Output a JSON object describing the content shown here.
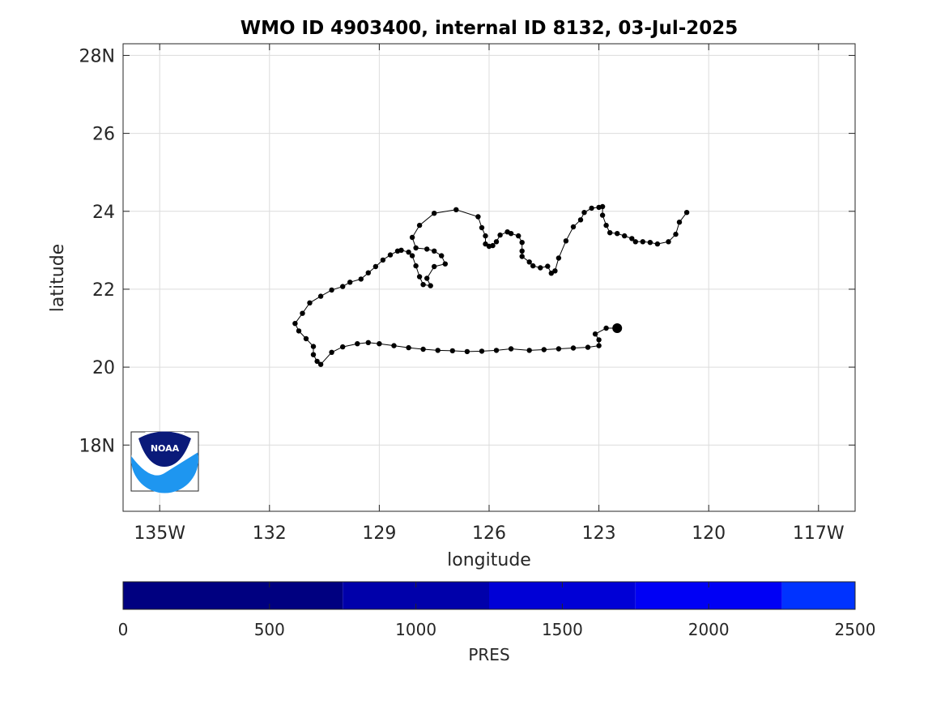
{
  "chart_data": {
    "type": "line",
    "title": "WMO ID 4903400, internal ID 8132, 03-Jul-2025",
    "xlabel": "longitude",
    "ylabel": "latitude",
    "xlim": [
      -136,
      -116
    ],
    "ylim": [
      16.3,
      28.3
    ],
    "grid": true,
    "x_ticks": [
      {
        "value": -135,
        "label": "135W"
      },
      {
        "value": -132,
        "label": "132"
      },
      {
        "value": -129,
        "label": "129"
      },
      {
        "value": -126,
        "label": "126"
      },
      {
        "value": -123,
        "label": "123"
      },
      {
        "value": -120,
        "label": "120"
      },
      {
        "value": -117,
        "label": "117W"
      }
    ],
    "y_ticks": [
      {
        "value": 18,
        "label": "18N"
      },
      {
        "value": 20,
        "label": "20"
      },
      {
        "value": 22,
        "label": "22"
      },
      {
        "value": 24,
        "label": "24"
      },
      {
        "value": 26,
        "label": "26"
      },
      {
        "value": 28,
        "label": "28N"
      }
    ],
    "series": [
      {
        "color": "#000000",
        "marker": "dot",
        "last_point_emphasized": true,
        "points": [
          [
            -120.6,
            23.97
          ],
          [
            -120.8,
            23.72
          ],
          [
            -120.9,
            23.41
          ],
          [
            -121.1,
            23.22
          ],
          [
            -121.4,
            23.16
          ],
          [
            -121.6,
            23.2
          ],
          [
            -121.8,
            23.22
          ],
          [
            -122.0,
            23.22
          ],
          [
            -122.1,
            23.3
          ],
          [
            -122.3,
            23.37
          ],
          [
            -122.5,
            23.43
          ],
          [
            -122.7,
            23.45
          ],
          [
            -122.8,
            23.64
          ],
          [
            -122.9,
            23.9
          ],
          [
            -122.9,
            24.12
          ],
          [
            -123.0,
            24.1
          ],
          [
            -123.2,
            24.08
          ],
          [
            -123.4,
            23.97
          ],
          [
            -123.5,
            23.78
          ],
          [
            -123.7,
            23.6
          ],
          [
            -123.9,
            23.24
          ],
          [
            -124.1,
            22.8
          ],
          [
            -124.2,
            22.47
          ],
          [
            -124.3,
            22.41
          ],
          [
            -124.4,
            22.59
          ],
          [
            -124.6,
            22.55
          ],
          [
            -124.8,
            22.6
          ],
          [
            -124.9,
            22.7
          ],
          [
            -125.1,
            22.84
          ],
          [
            -125.1,
            22.98
          ],
          [
            -125.1,
            23.2
          ],
          [
            -125.2,
            23.37
          ],
          [
            -125.4,
            23.43
          ],
          [
            -125.5,
            23.47
          ],
          [
            -125.7,
            23.39
          ],
          [
            -125.8,
            23.22
          ],
          [
            -125.9,
            23.12
          ],
          [
            -126.0,
            23.1
          ],
          [
            -126.1,
            23.16
          ],
          [
            -126.1,
            23.37
          ],
          [
            -126.2,
            23.58
          ],
          [
            -126.3,
            23.86
          ],
          [
            -126.9,
            24.04
          ],
          [
            -127.5,
            23.95
          ],
          [
            -127.9,
            23.64
          ],
          [
            -128.1,
            23.33
          ],
          [
            -128.0,
            23.06
          ],
          [
            -127.7,
            23.03
          ],
          [
            -127.5,
            22.98
          ],
          [
            -127.3,
            22.86
          ],
          [
            -127.2,
            22.65
          ],
          [
            -127.5,
            22.58
          ],
          [
            -127.7,
            22.28
          ],
          [
            -127.6,
            22.09
          ],
          [
            -127.8,
            22.12
          ],
          [
            -127.9,
            22.32
          ],
          [
            -128.0,
            22.6
          ],
          [
            -128.1,
            22.86
          ],
          [
            -128.2,
            22.95
          ],
          [
            -128.4,
            23.0
          ],
          [
            -128.5,
            22.98
          ],
          [
            -128.7,
            22.88
          ],
          [
            -128.9,
            22.75
          ],
          [
            -129.1,
            22.58
          ],
          [
            -129.3,
            22.42
          ],
          [
            -129.5,
            22.26
          ],
          [
            -129.8,
            22.18
          ],
          [
            -130.0,
            22.07
          ],
          [
            -130.3,
            21.98
          ],
          [
            -130.6,
            21.82
          ],
          [
            -130.9,
            21.65
          ],
          [
            -131.1,
            21.38
          ],
          [
            -131.3,
            21.12
          ],
          [
            -131.2,
            20.93
          ],
          [
            -131.0,
            20.73
          ],
          [
            -130.8,
            20.53
          ],
          [
            -130.8,
            20.32
          ],
          [
            -130.7,
            20.15
          ],
          [
            -130.6,
            20.07
          ],
          [
            -130.3,
            20.38
          ],
          [
            -130.0,
            20.52
          ],
          [
            -129.6,
            20.6
          ],
          [
            -129.3,
            20.63
          ],
          [
            -129.0,
            20.6
          ],
          [
            -128.6,
            20.55
          ],
          [
            -128.2,
            20.5
          ],
          [
            -127.8,
            20.46
          ],
          [
            -127.4,
            20.43
          ],
          [
            -127.0,
            20.42
          ],
          [
            -126.6,
            20.4
          ],
          [
            -126.2,
            20.41
          ],
          [
            -125.8,
            20.43
          ],
          [
            -125.4,
            20.47
          ],
          [
            -124.9,
            20.43
          ],
          [
            -124.5,
            20.45
          ],
          [
            -124.1,
            20.47
          ],
          [
            -123.7,
            20.49
          ],
          [
            -123.3,
            20.51
          ],
          [
            -123.0,
            20.55
          ],
          [
            -123.0,
            20.7
          ],
          [
            -123.1,
            20.85
          ],
          [
            -122.8,
            21.0
          ],
          [
            -122.5,
            21.0
          ]
        ]
      }
    ],
    "colorbar": {
      "label": "PRES",
      "ticks": [
        "0",
        "500",
        "1000",
        "1500",
        "2000",
        "2500"
      ],
      "range": [
        0,
        2500
      ],
      "segments": [
        {
          "from": 0,
          "to": 750,
          "color": "#000080"
        },
        {
          "from": 750,
          "to": 1250,
          "color": "#0000aa"
        },
        {
          "from": 1250,
          "to": 1750,
          "color": "#0000d6"
        },
        {
          "from": 1750,
          "to": 2250,
          "color": "#0000f5"
        },
        {
          "from": 2250,
          "to": 2500,
          "color": "#0033ff"
        }
      ]
    },
    "logo": {
      "text": "NOAA",
      "colors": {
        "navy": "#0a1a7a",
        "sky": "#1e96f0"
      }
    }
  }
}
